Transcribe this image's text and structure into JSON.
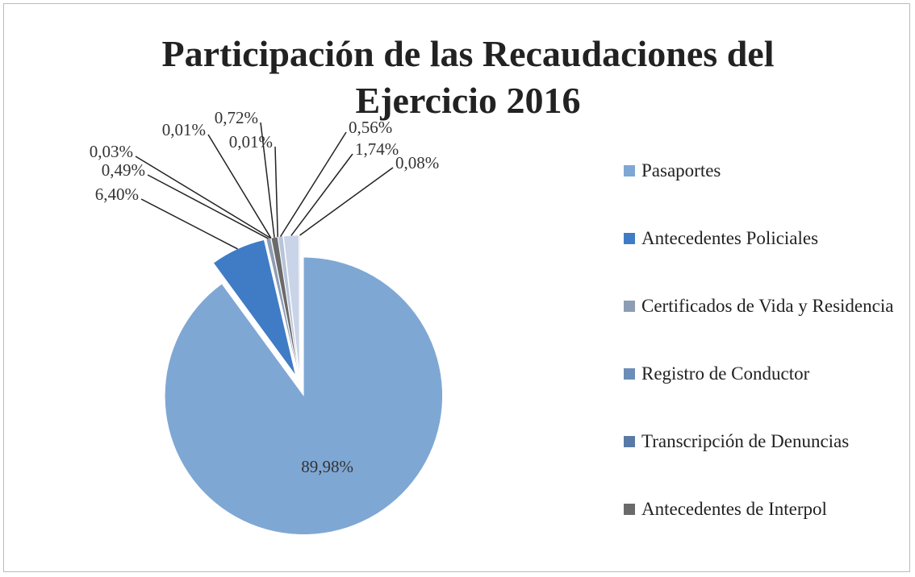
{
  "chart_data": {
    "type": "pie",
    "title": "Participación de las Recaudaciones del Ejercicio 2016",
    "categories": [
      "Pasaportes",
      "Antecedentes Policiales",
      "Certificados de Vida y Residencia",
      "Registro de Conductor",
      "Transcripción de Denuncias",
      "Antecedentes de Interpol",
      null,
      null,
      null,
      null
    ],
    "values": [
      89.98,
      6.4,
      0.49,
      0.03,
      0.01,
      0.72,
      0.01,
      0.56,
      1.74,
      0.08
    ],
    "value_labels": [
      "89,98%",
      "6,40%",
      "0,49%",
      "0,03%",
      "0,01%",
      "0,72%",
      "0,01%",
      "0,56%",
      "1,74%",
      "0,08%"
    ],
    "colors": [
      "#7fa7d4",
      "#3f7cc5",
      "#8d9db4",
      "#6b8db8",
      "#5a7aa6",
      "#6a6a6a",
      "#2e2e2e",
      "#b7c4da",
      "#cad4e8",
      "#a6b8d8"
    ],
    "legend": "right"
  }
}
